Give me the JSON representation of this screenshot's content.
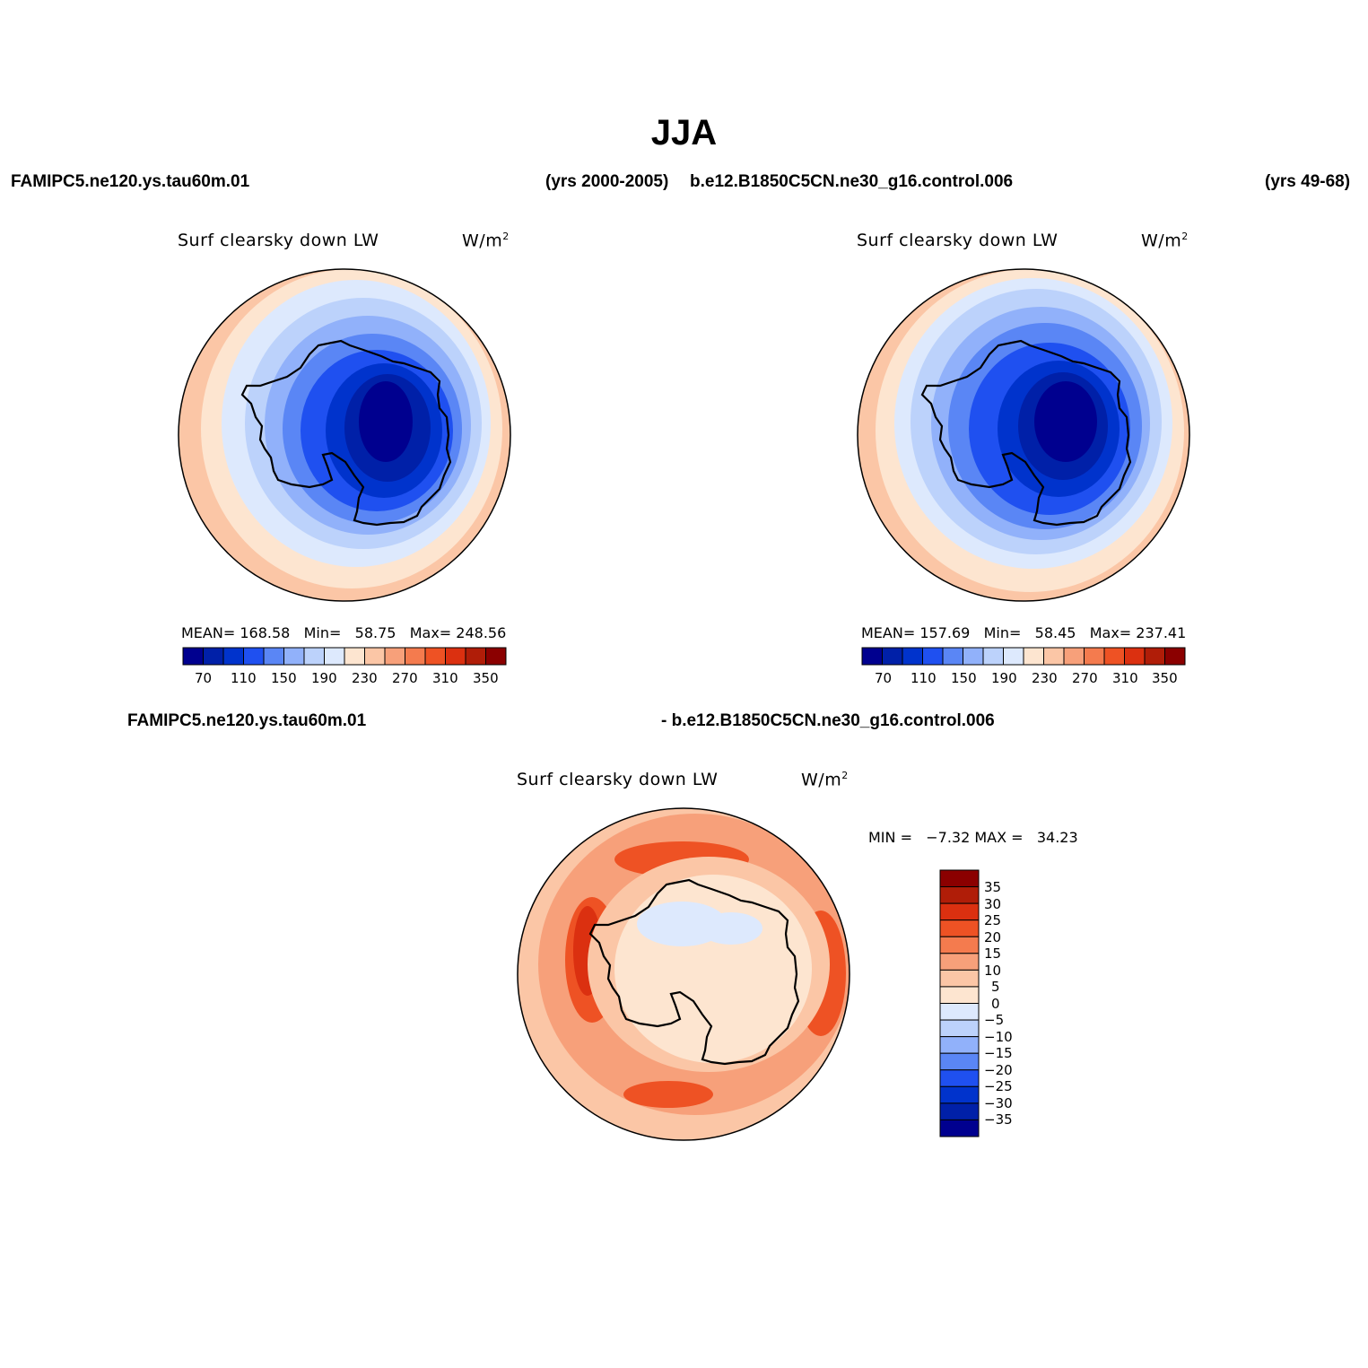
{
  "figure": {
    "title": "JJA",
    "left_case": "FAMIPC5.ne120.ys.tau60m.01",
    "left_years": "(yrs 2000-2005)",
    "right_case": "b.e12.B1850C5CN.ne30_g16.control.006",
    "right_years": "(yrs 49-68)",
    "diff_case_a": "FAMIPC5.ne120.ys.tau60m.01",
    "diff_case_b": "- b.e12.B1850C5CN.ne30_g16.control.006"
  },
  "panels": {
    "left": {
      "variable": "Surf clearsky down LW",
      "units": "W/m",
      "units_sup": "2",
      "mean_label": "MEAN=",
      "mean": "168.58",
      "min_label": "Min=",
      "min": "58.75",
      "max_label": "Max=",
      "max": "248.56"
    },
    "right": {
      "variable": "Surf clearsky down LW",
      "units": "W/m",
      "units_sup": "2",
      "mean_label": "MEAN=",
      "mean": "157.69",
      "min_label": "Min=",
      "min": "58.45",
      "max_label": "Max=",
      "max": "237.41"
    },
    "diff": {
      "variable": "Surf clearsky down LW",
      "units": "W/m",
      "units_sup": "2",
      "min_label": "MIN =",
      "min": "−7.32",
      "max_label": "MAX =",
      "max": "34.23"
    }
  },
  "colorbar_abs": {
    "colors": [
      "#00008f",
      "#0020a8",
      "#0033cc",
      "#1f50f0",
      "#5a86f5",
      "#91b1fa",
      "#bcd2fb",
      "#dde9fd",
      "#fde5d0",
      "#fbc6a6",
      "#f7a07a",
      "#f47b4e",
      "#ee5224",
      "#db3010",
      "#b01d08",
      "#8b0000"
    ],
    "tick_labels": [
      "70",
      "110",
      "150",
      "190",
      "230",
      "270",
      "310",
      "350"
    ]
  },
  "colorbar_diff": {
    "colors": [
      "#8b0000",
      "#b01d08",
      "#db3010",
      "#ee5224",
      "#f47b4e",
      "#f7a07a",
      "#fbc6a6",
      "#fde5d0",
      "#dde9fd",
      "#bcd2fb",
      "#91b1fa",
      "#5a86f5",
      "#1f50f0",
      "#0033cc",
      "#0020a8",
      "#00008f"
    ],
    "tick_labels": [
      "35",
      "30",
      "25",
      "20",
      "15",
      "10",
      "5",
      "0",
      "−5",
      "−10",
      "−15",
      "−20",
      "−25",
      "−30",
      "−35"
    ]
  }
}
